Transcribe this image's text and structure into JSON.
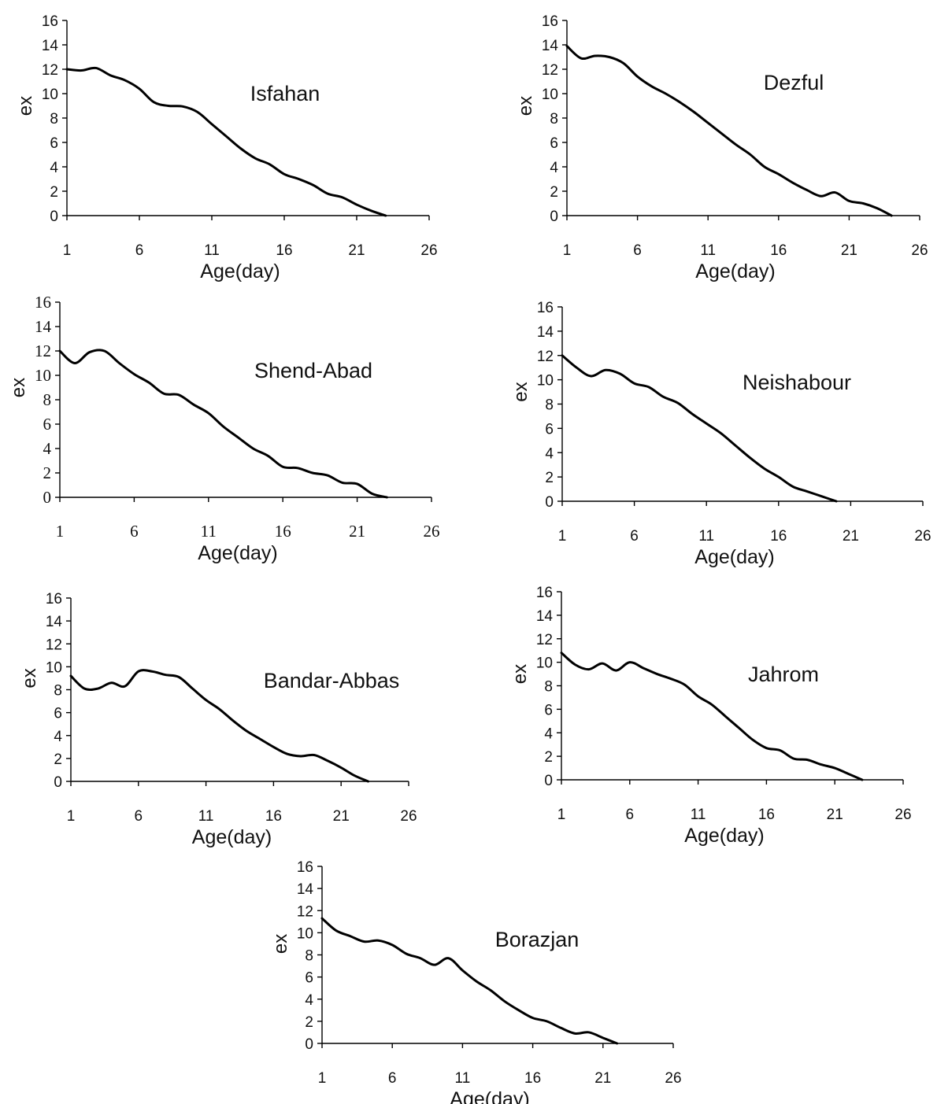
{
  "chart_data": [
    {
      "type": "line",
      "title": "Isfahan",
      "xlabel": "Age(day)",
      "ylabel": "ex",
      "xlim": [
        1,
        26
      ],
      "ylim": [
        0,
        16
      ],
      "xticks": [
        "1",
        "6",
        "11",
        "16",
        "21",
        "26"
      ],
      "yticks": [
        "0",
        "2",
        "4",
        "6",
        "8",
        "10",
        "12",
        "14",
        "16"
      ],
      "x": [
        1,
        2,
        3,
        4,
        5,
        6,
        7,
        8,
        9,
        10,
        11,
        12,
        13,
        14,
        15,
        16,
        17,
        18,
        19,
        20,
        21,
        22,
        23
      ],
      "values": [
        12.0,
        11.9,
        12.1,
        11.5,
        11.1,
        10.4,
        9.3,
        9.0,
        8.95,
        8.5,
        7.5,
        6.5,
        5.5,
        4.7,
        4.2,
        3.4,
        3.0,
        2.5,
        1.8,
        1.5,
        0.9,
        0.4,
        0.0
      ]
    },
    {
      "type": "line",
      "title": "Dezful",
      "xlabel": "Age(day)",
      "ylabel": "ex",
      "xlim": [
        1,
        26
      ],
      "ylim": [
        0,
        16
      ],
      "xticks": [
        "1",
        "6",
        "11",
        "16",
        "21",
        "26"
      ],
      "yticks": [
        "0",
        "2",
        "4",
        "6",
        "8",
        "10",
        "12",
        "14",
        "16"
      ],
      "x": [
        1,
        2,
        3,
        4,
        5,
        6,
        7,
        8,
        9,
        10,
        11,
        12,
        13,
        14,
        15,
        16,
        17,
        18,
        19,
        20,
        21,
        22,
        23,
        24
      ],
      "values": [
        13.9,
        12.9,
        13.1,
        13.0,
        12.5,
        11.4,
        10.6,
        10.0,
        9.3,
        8.5,
        7.6,
        6.7,
        5.8,
        5.0,
        4.0,
        3.4,
        2.7,
        2.1,
        1.6,
        1.9,
        1.2,
        1.0,
        0.6,
        0.0
      ]
    },
    {
      "type": "line",
      "title": "Shend-Abad",
      "xlabel": "Age(day)",
      "ylabel": "ex",
      "xlim": [
        1,
        26
      ],
      "ylim": [
        0,
        16
      ],
      "xticks": [
        "1",
        "6",
        "11",
        "16",
        "21",
        "26"
      ],
      "yticks": [
        "0",
        "2",
        "4",
        "6",
        "8",
        "10",
        "12",
        "14",
        "16"
      ],
      "x": [
        1,
        2,
        3,
        4,
        5,
        6,
        7,
        8,
        9,
        10,
        11,
        12,
        13,
        14,
        15,
        16,
        17,
        18,
        19,
        20,
        21,
        22,
        23
      ],
      "values": [
        12.0,
        11.0,
        11.9,
        12.0,
        11.0,
        10.1,
        9.4,
        8.5,
        8.4,
        7.6,
        6.9,
        5.8,
        4.9,
        4.0,
        3.4,
        2.5,
        2.4,
        2.0,
        1.8,
        1.2,
        1.1,
        0.3,
        0.0
      ]
    },
    {
      "type": "line",
      "title": "Neishabour",
      "xlabel": "Age(day)",
      "ylabel": "ex",
      "xlim": [
        1,
        26
      ],
      "ylim": [
        0,
        16
      ],
      "xticks": [
        "1",
        "6",
        "11",
        "16",
        "21",
        "26"
      ],
      "yticks": [
        "0",
        "2",
        "4",
        "6",
        "8",
        "10",
        "12",
        "14",
        "16"
      ],
      "x": [
        1,
        2,
        3,
        4,
        5,
        6,
        7,
        8,
        9,
        10,
        11,
        12,
        13,
        14,
        15,
        16,
        17,
        18,
        19,
        20
      ],
      "values": [
        12.0,
        11.0,
        10.3,
        10.8,
        10.5,
        9.7,
        9.4,
        8.6,
        8.1,
        7.2,
        6.4,
        5.6,
        4.6,
        3.6,
        2.7,
        2.0,
        1.2,
        0.8,
        0.4,
        0.0
      ]
    },
    {
      "type": "line",
      "title": "Bandar-Abbas",
      "xlabel": "Age(day)",
      "ylabel": "ex",
      "xlim": [
        1,
        26
      ],
      "ylim": [
        0,
        16
      ],
      "xticks": [
        "1",
        "6",
        "11",
        "16",
        "21",
        "26"
      ],
      "yticks": [
        "0",
        "2",
        "4",
        "6",
        "8",
        "10",
        "12",
        "14",
        "16"
      ],
      "x": [
        1,
        2,
        3,
        4,
        5,
        6,
        7,
        8,
        9,
        10,
        11,
        12,
        13,
        14,
        15,
        16,
        17,
        18,
        19,
        20,
        21,
        22,
        23
      ],
      "values": [
        9.2,
        8.1,
        8.1,
        8.6,
        8.3,
        9.6,
        9.6,
        9.3,
        9.1,
        8.1,
        7.1,
        6.3,
        5.3,
        4.4,
        3.7,
        3.0,
        2.4,
        2.2,
        2.3,
        1.8,
        1.2,
        0.5,
        0.0
      ]
    },
    {
      "type": "line",
      "title": "Jahrom",
      "xlabel": "Age(day)",
      "ylabel": "ex",
      "xlim": [
        1,
        26
      ],
      "ylim": [
        0,
        16
      ],
      "xticks": [
        "1",
        "6",
        "11",
        "16",
        "21",
        "26"
      ],
      "yticks": [
        "0",
        "2",
        "4",
        "6",
        "8",
        "10",
        "12",
        "14",
        "16"
      ],
      "x": [
        1,
        2,
        3,
        4,
        5,
        6,
        7,
        8,
        9,
        10,
        11,
        12,
        13,
        14,
        15,
        16,
        17,
        18,
        19,
        20,
        21,
        22,
        23
      ],
      "values": [
        10.8,
        9.8,
        9.4,
        9.9,
        9.3,
        10.0,
        9.5,
        9.0,
        8.6,
        8.1,
        7.1,
        6.4,
        5.4,
        4.4,
        3.4,
        2.7,
        2.5,
        1.8,
        1.7,
        1.3,
        1.0,
        0.5,
        0.0
      ]
    },
    {
      "type": "line",
      "title": "Borazjan",
      "xlabel": "Age(day)",
      "ylabel": "ex",
      "xlim": [
        1,
        26
      ],
      "ylim": [
        0,
        16
      ],
      "xticks": [
        "1",
        "6",
        "11",
        "16",
        "21",
        "26"
      ],
      "yticks": [
        "0",
        "2",
        "4",
        "6",
        "8",
        "10",
        "12",
        "14",
        "16"
      ],
      "x": [
        1,
        2,
        3,
        4,
        5,
        6,
        7,
        8,
        9,
        10,
        11,
        12,
        13,
        14,
        15,
        16,
        17,
        18,
        19,
        20,
        21,
        22
      ],
      "values": [
        11.3,
        10.2,
        9.7,
        9.2,
        9.3,
        8.9,
        8.1,
        7.7,
        7.1,
        7.7,
        6.6,
        5.6,
        4.8,
        3.8,
        3.0,
        2.3,
        2.0,
        1.4,
        0.9,
        1.0,
        0.5,
        0.0
      ]
    }
  ]
}
